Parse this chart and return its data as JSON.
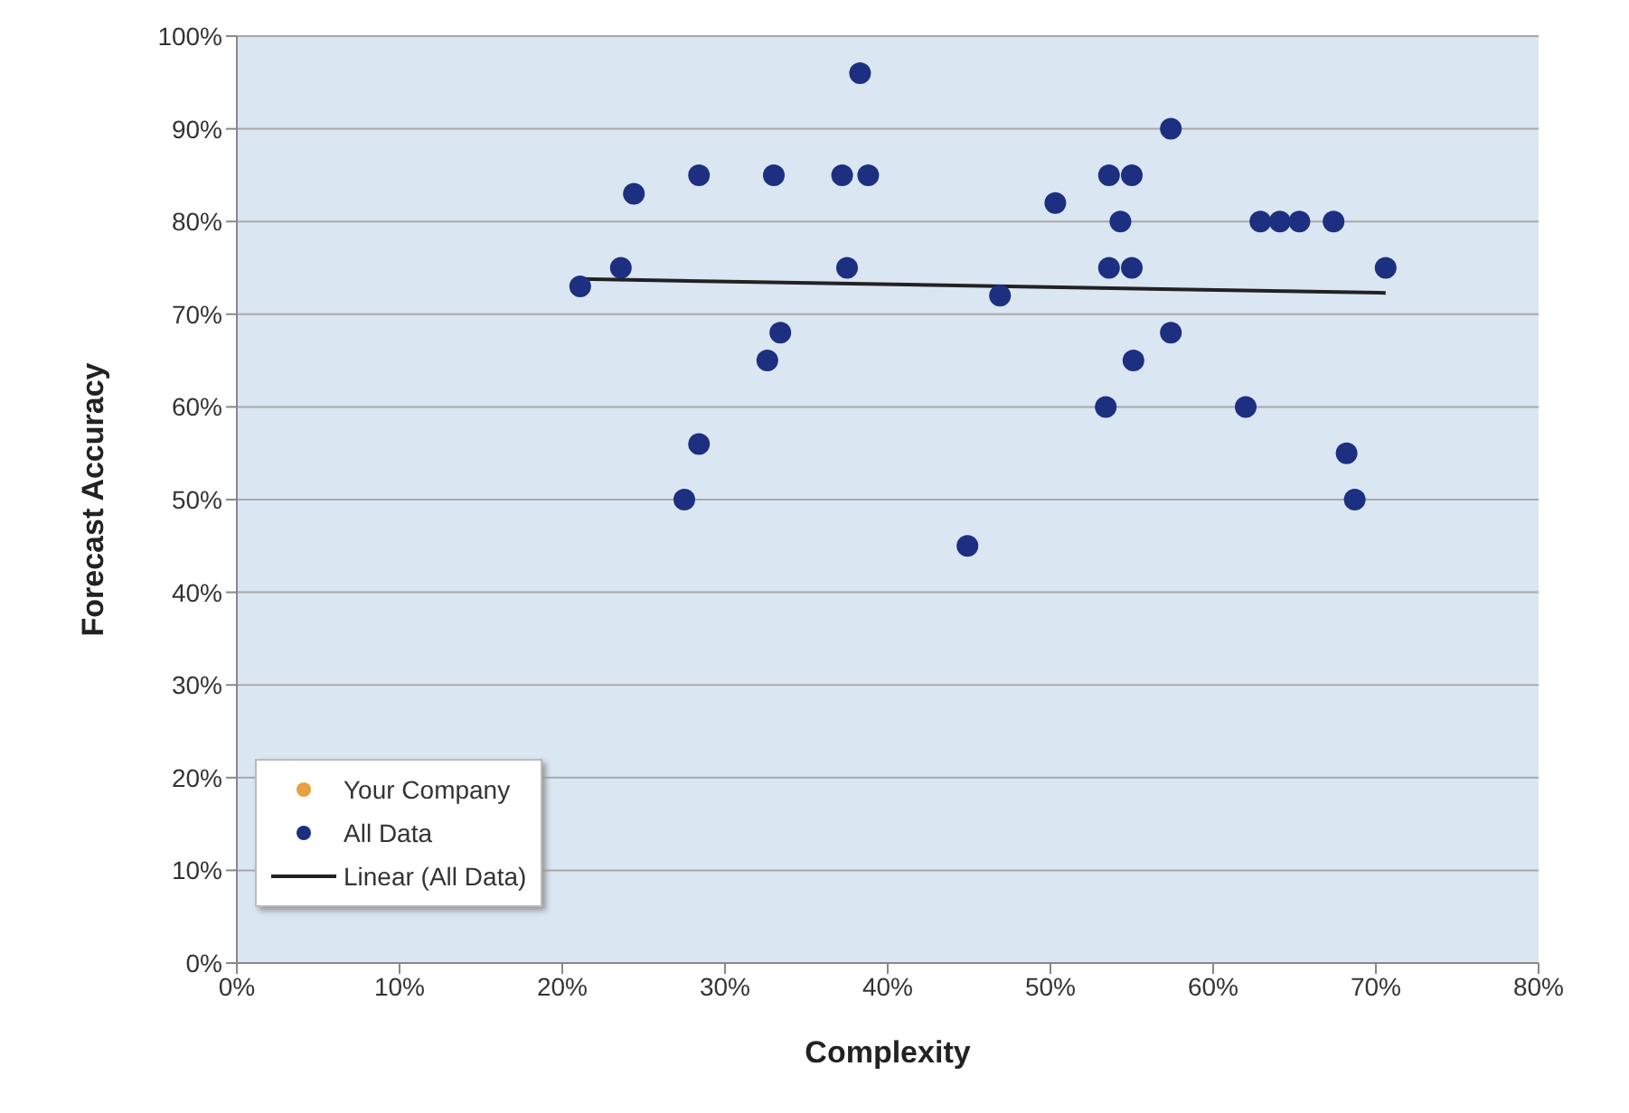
{
  "chart_data": {
    "type": "scatter",
    "xlabel": "Complexity",
    "ylabel": "Forecast Accuracy",
    "xlim": [
      0,
      80
    ],
    "ylim": [
      0,
      100
    ],
    "xticks": [
      {
        "value": 0,
        "label": "0%"
      },
      {
        "value": 10,
        "label": "10%"
      },
      {
        "value": 20,
        "label": "20%"
      },
      {
        "value": 30,
        "label": "30%"
      },
      {
        "value": 40,
        "label": "40%"
      },
      {
        "value": 50,
        "label": "50%"
      },
      {
        "value": 60,
        "label": "60%"
      },
      {
        "value": 70,
        "label": "70%"
      },
      {
        "value": 80,
        "label": "80%"
      }
    ],
    "yticks": [
      {
        "value": 0,
        "label": "0%"
      },
      {
        "value": 10,
        "label": "10%"
      },
      {
        "value": 20,
        "label": "20%"
      },
      {
        "value": 30,
        "label": "30%"
      },
      {
        "value": 40,
        "label": "40%"
      },
      {
        "value": 50,
        "label": "50%"
      },
      {
        "value": 60,
        "label": "60%"
      },
      {
        "value": 70,
        "label": "70%"
      },
      {
        "value": 80,
        "label": "80%"
      },
      {
        "value": 90,
        "label": "90%"
      },
      {
        "value": 100,
        "label": "100%"
      }
    ],
    "grid": "y",
    "legend": "bottom left",
    "series": [
      {
        "name": "Your Company",
        "color": "#e8a040",
        "marker": "circle"
      },
      {
        "name": "All Data",
        "color": "#1c2f80",
        "marker": "circle",
        "x": [
          21.1,
          23.6,
          24.4,
          28.4,
          28.4,
          27.5,
          33,
          33.4,
          32.6,
          37.2,
          38.8,
          38.3,
          37.5,
          44.9,
          46.9,
          50.3,
          53.4,
          53.6,
          55,
          53.6,
          54.3,
          55,
          55.1,
          57.4,
          57.4,
          62,
          62.9,
          64.1,
          65.3,
          67.4,
          68.2,
          68.7,
          70.6
        ],
        "values": [
          73,
          75,
          83,
          85,
          56,
          50,
          85,
          68,
          65,
          85,
          85,
          96,
          75,
          45,
          72,
          82,
          60,
          85,
          85,
          75,
          80,
          75,
          65,
          90,
          68,
          60,
          80,
          80,
          80,
          80,
          55,
          50,
          75
        ]
      },
      {
        "name": "Linear (All Data)",
        "type": "line",
        "color": "#222222",
        "x": [
          21.1,
          70.6
        ],
        "values": [
          73.8,
          72.3
        ]
      }
    ]
  }
}
